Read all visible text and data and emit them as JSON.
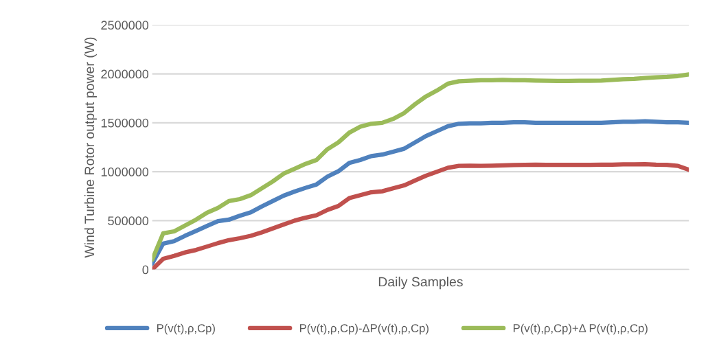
{
  "chart_data": {
    "type": "line",
    "xlabel": "Daily Samples",
    "ylabel": "Wind Turbine Rotor output power (W)",
    "categories": [
      null,
      null,
      null,
      null,
      null,
      null,
      null,
      null,
      null,
      null,
      null,
      null,
      null,
      null,
      null,
      null,
      null,
      null,
      null,
      null,
      null,
      null,
      null,
      null,
      null,
      null,
      null,
      null,
      null,
      null,
      null,
      null,
      null,
      null,
      null,
      null,
      null,
      null,
      null,
      null,
      null,
      null,
      null,
      null,
      null,
      null,
      null,
      null,
      null,
      null
    ],
    "ylim": [
      0,
      2500000
    ],
    "yticks": [
      0,
      500000,
      1000000,
      1500000,
      2000000,
      2500000
    ],
    "grid": "y",
    "legend": "bottom",
    "line_style": "solid",
    "marker": "none",
    "series": [
      {
        "name": "P(v(t),ρ,Cp)",
        "color": "#4f81bd",
        "values": [
          60000,
          265000,
          290000,
          345000,
          395000,
          445000,
          495000,
          510000,
          550000,
          585000,
          645000,
          700000,
          755000,
          797000,
          835000,
          870000,
          950000,
          1005000,
          1090000,
          1120000,
          1160000,
          1175000,
          1205000,
          1235000,
          1300000,
          1365000,
          1415000,
          1465000,
          1490000,
          1495000,
          1495000,
          1500000,
          1500000,
          1505000,
          1505000,
          1500000,
          1500000,
          1500000,
          1500000,
          1500000,
          1500000,
          1500000,
          1505000,
          1510000,
          1510000,
          1515000,
          1510000,
          1505000,
          1505000,
          1500000
        ]
      },
      {
        "name": "P(v(t),ρ,Cp)-ΔP(v(t),ρ,Cp)",
        "color": "#c0504d",
        "values": [
          0,
          110000,
          140000,
          175000,
          200000,
          235000,
          270000,
          300000,
          320000,
          345000,
          380000,
          420000,
          460000,
          500000,
          530000,
          555000,
          610000,
          650000,
          730000,
          760000,
          790000,
          800000,
          830000,
          860000,
          910000,
          960000,
          1000000,
          1040000,
          1060000,
          1062000,
          1060000,
          1062000,
          1065000,
          1068000,
          1070000,
          1072000,
          1070000,
          1070000,
          1070000,
          1070000,
          1070000,
          1072000,
          1072000,
          1075000,
          1075000,
          1078000,
          1072000,
          1070000,
          1060000,
          1020000
        ]
      },
      {
        "name": "P(v(t),ρ,Cp)+Δ P(v(t),ρ,Cp)",
        "color": "#9bbb59",
        "values": [
          100000,
          370000,
          390000,
          450000,
          510000,
          580000,
          630000,
          700000,
          720000,
          760000,
          830000,
          900000,
          980000,
          1030000,
          1080000,
          1120000,
          1230000,
          1300000,
          1400000,
          1460000,
          1490000,
          1500000,
          1540000,
          1600000,
          1690000,
          1770000,
          1830000,
          1900000,
          1925000,
          1930000,
          1935000,
          1935000,
          1938000,
          1935000,
          1935000,
          1932000,
          1930000,
          1928000,
          1928000,
          1930000,
          1930000,
          1932000,
          1938000,
          1945000,
          1950000,
          1958000,
          1965000,
          1970000,
          1978000,
          1995000
        ]
      }
    ]
  }
}
